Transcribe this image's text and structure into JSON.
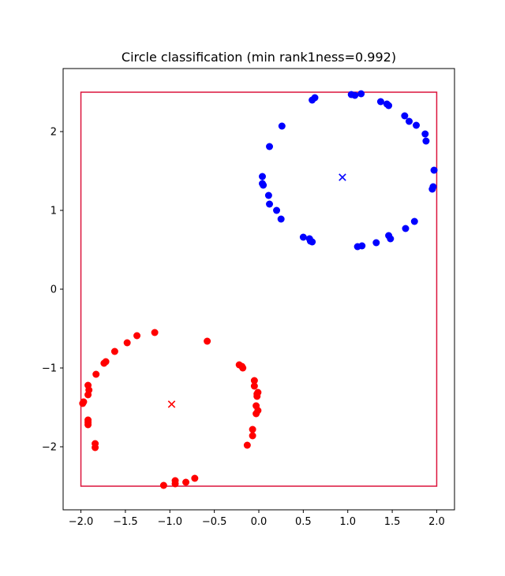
{
  "chart_data": {
    "type": "scatter",
    "title": "Circle classification (min rank1ness=0.992)",
    "xlabel": "",
    "ylabel": "",
    "xlim": [
      -2.2,
      2.2
    ],
    "ylim": [
      -2.8,
      2.8
    ],
    "x_ticks": [
      -2.0,
      -1.5,
      -1.0,
      -0.5,
      0.0,
      0.5,
      1.0,
      1.5,
      2.0
    ],
    "x_tick_labels": [
      "−2.0",
      "−1.5",
      "−1.0",
      "−0.5",
      "0.0",
      "0.5",
      "1.0",
      "1.5",
      "2.0"
    ],
    "y_ticks": [
      -2,
      -1,
      0,
      1,
      2
    ],
    "y_tick_labels": [
      "−2",
      "−1",
      "0",
      "1",
      "2"
    ],
    "grid": false,
    "boundary_box": {
      "x": [
        -2.0,
        2.0
      ],
      "y": [
        -2.5,
        2.5
      ],
      "color": "#dc143c"
    },
    "series": [
      {
        "color": "#0000ff",
        "points": [
          [
            1.04,
            2.47
          ],
          [
            1.08,
            2.46
          ],
          [
            1.15,
            2.48
          ],
          [
            0.63,
            2.43
          ],
          [
            0.6,
            2.4
          ],
          [
            1.37,
            2.38
          ],
          [
            1.44,
            2.35
          ],
          [
            1.46,
            2.33
          ],
          [
            0.26,
            2.07
          ],
          [
            1.64,
            2.2
          ],
          [
            1.69,
            2.13
          ],
          [
            1.77,
            2.08
          ],
          [
            0.12,
            1.81
          ],
          [
            1.87,
            1.97
          ],
          [
            1.88,
            1.88
          ],
          [
            1.97,
            1.51
          ],
          [
            0.04,
            1.43
          ],
          [
            0.04,
            1.34
          ],
          [
            0.05,
            1.32
          ],
          [
            1.96,
            1.3
          ],
          [
            1.95,
            1.27
          ],
          [
            0.11,
            1.19
          ],
          [
            0.12,
            1.08
          ],
          [
            0.2,
            1.0
          ],
          [
            0.25,
            0.89
          ],
          [
            1.75,
            0.86
          ],
          [
            1.65,
            0.77
          ],
          [
            1.46,
            0.68
          ],
          [
            1.48,
            0.64
          ],
          [
            0.5,
            0.66
          ],
          [
            0.57,
            0.64
          ],
          [
            0.58,
            0.61
          ],
          [
            0.6,
            0.6
          ],
          [
            1.32,
            0.59
          ],
          [
            1.11,
            0.54
          ],
          [
            1.16,
            0.55
          ]
        ],
        "center": [
          0.94,
          1.42
        ]
      },
      {
        "color": "#ff0000",
        "points": [
          [
            -0.58,
            -0.66
          ],
          [
            -1.17,
            -0.55
          ],
          [
            -1.37,
            -0.59
          ],
          [
            -1.48,
            -0.68
          ],
          [
            -1.62,
            -0.79
          ],
          [
            -1.72,
            -0.92
          ],
          [
            -1.74,
            -0.94
          ],
          [
            -1.83,
            -1.08
          ],
          [
            -0.22,
            -0.96
          ],
          [
            -0.19,
            -0.98
          ],
          [
            -0.18,
            -1.0
          ],
          [
            -0.05,
            -1.16
          ],
          [
            -0.05,
            -1.23
          ],
          [
            -1.92,
            -1.22
          ],
          [
            -1.91,
            -1.28
          ],
          [
            -1.92,
            -1.34
          ],
          [
            -0.01,
            -1.31
          ],
          [
            -0.02,
            -1.33
          ],
          [
            -0.02,
            -1.36
          ],
          [
            -1.97,
            -1.43
          ],
          [
            -1.98,
            -1.45
          ],
          [
            -0.03,
            -1.48
          ],
          [
            -0.01,
            -1.54
          ],
          [
            -0.03,
            -1.58
          ],
          [
            -1.92,
            -1.66
          ],
          [
            -1.92,
            -1.69
          ],
          [
            -1.92,
            -1.72
          ],
          [
            -0.07,
            -1.78
          ],
          [
            -0.07,
            -1.86
          ],
          [
            -0.13,
            -1.98
          ],
          [
            -1.84,
            -1.96
          ],
          [
            -1.84,
            -2.01
          ],
          [
            -0.72,
            -2.4
          ],
          [
            -0.82,
            -2.45
          ],
          [
            -0.94,
            -2.43
          ],
          [
            -0.94,
            -2.47
          ],
          [
            -1.07,
            -2.49
          ]
        ],
        "center": [
          -0.98,
          -1.46
        ]
      }
    ]
  }
}
